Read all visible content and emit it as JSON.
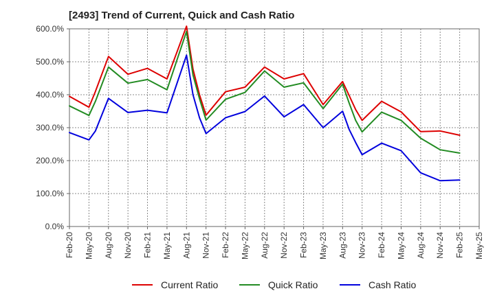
{
  "chart_data": {
    "type": "line",
    "title": "[2493]  Trend of Current, Quick and Cash Ratio",
    "xlabel": "",
    "ylabel": "",
    "ylim": [
      0,
      600
    ],
    "grid": true,
    "legend_position": "bottom",
    "x_ticks": [
      "Feb-20",
      "May-20",
      "Aug-20",
      "Nov-20",
      "Feb-21",
      "May-21",
      "Aug-21",
      "Nov-21",
      "Feb-22",
      "May-22",
      "Aug-22",
      "Nov-22",
      "Feb-23",
      "May-23",
      "Aug-23",
      "Nov-23",
      "Feb-24",
      "May-24",
      "Aug-24",
      "Nov-24",
      "Feb-25",
      "May-25"
    ],
    "y_ticks": [
      "0.0%",
      "100.0%",
      "200.0%",
      "300.0%",
      "400.0%",
      "500.0%",
      "600.0%"
    ],
    "x": [
      "Feb-20",
      "May-20",
      "Jun-20",
      "Aug-20",
      "Nov-20",
      "Feb-21",
      "May-21",
      "Aug-21",
      "Sep-21",
      "Oct-21",
      "Nov-21",
      "Feb-22",
      "May-22",
      "Aug-22",
      "Nov-22",
      "Feb-23",
      "May-23",
      "Aug-23",
      "Sep-23",
      "Oct-23",
      "Nov-23",
      "Feb-24",
      "May-24",
      "Aug-24",
      "Nov-24",
      "Feb-25"
    ],
    "series": [
      {
        "name": "Current Ratio",
        "color": "#dd0000",
        "values": [
          395,
          362,
          410,
          516,
          462,
          480,
          448,
          608,
          478,
          400,
          338,
          409,
          423,
          484,
          448,
          464,
          370,
          440,
          398,
          355,
          322,
          380,
          348,
          288,
          290,
          277
        ]
      },
      {
        "name": "Quick Ratio",
        "color": "#228B22",
        "values": [
          366,
          337,
          380,
          484,
          435,
          446,
          415,
          592,
          460,
          388,
          323,
          386,
          407,
          472,
          423,
          436,
          358,
          432,
          375,
          322,
          287,
          347,
          322,
          268,
          233,
          223
        ]
      },
      {
        "name": "Cash Ratio",
        "color": "#0000dd",
        "values": [
          285,
          263,
          290,
          389,
          346,
          353,
          345,
          520,
          400,
          330,
          282,
          330,
          349,
          396,
          333,
          370,
          300,
          350,
          295,
          255,
          218,
          253,
          230,
          163,
          139,
          141
        ]
      }
    ]
  }
}
